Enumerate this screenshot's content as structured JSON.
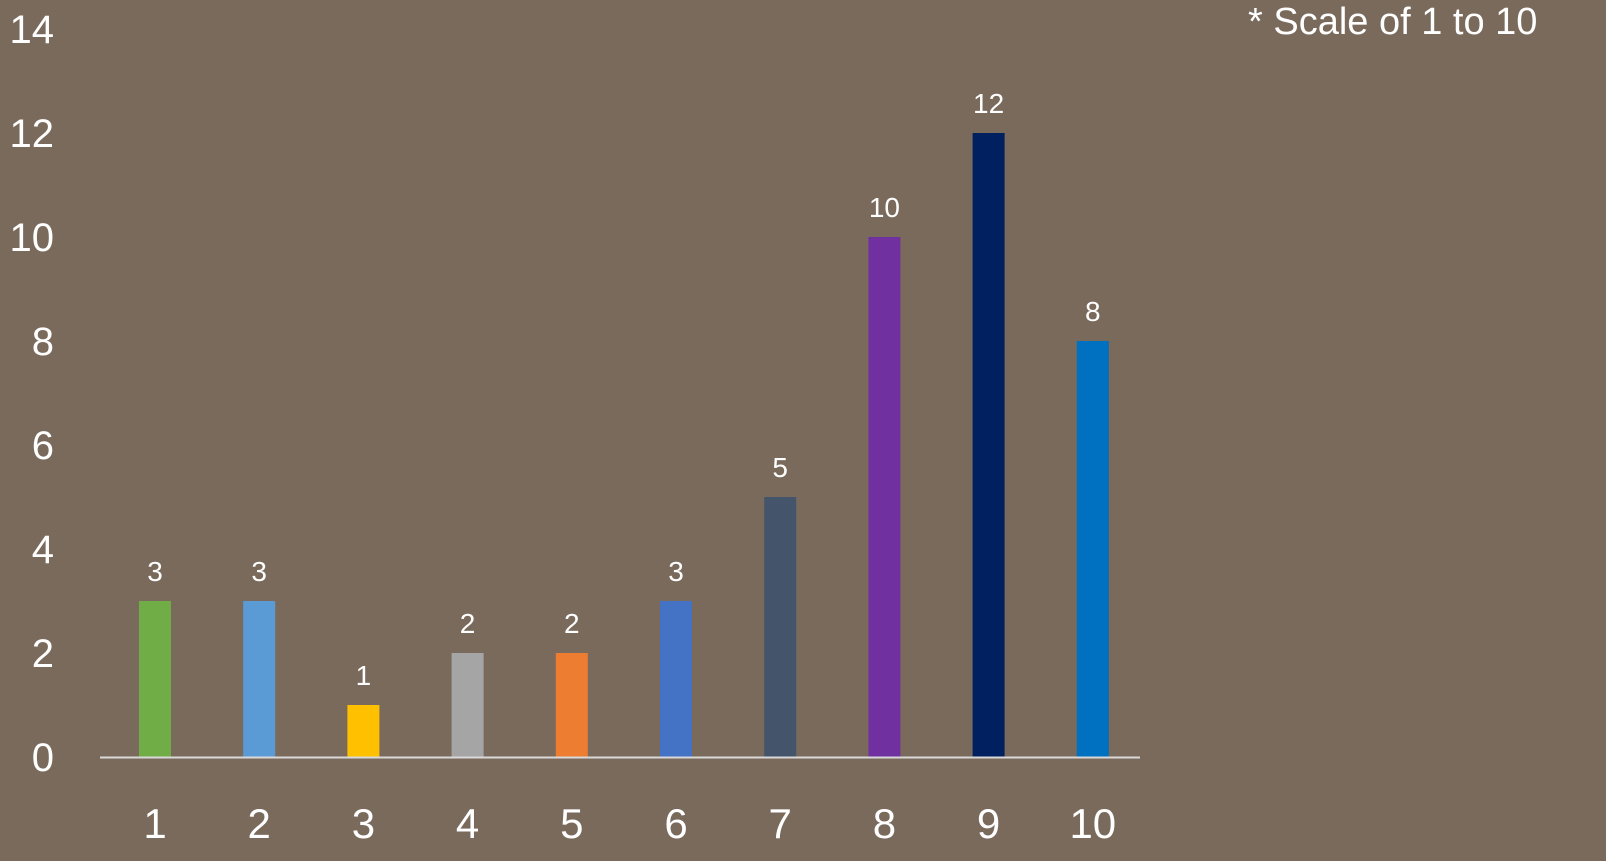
{
  "chart_data": {
    "type": "bar",
    "categories": [
      "1",
      "2",
      "3",
      "4",
      "5",
      "6",
      "7",
      "8",
      "9",
      "10"
    ],
    "values": [
      3,
      3,
      1,
      2,
      2,
      3,
      5,
      10,
      12,
      8
    ],
    "bar_colors": [
      "#70ad47",
      "#5b9bd5",
      "#ffc000",
      "#a5a5a5",
      "#ed7d31",
      "#4472c4",
      "#44546a",
      "#7030a0",
      "#002060",
      "#0070c0"
    ],
    "y_ticks": [
      "0",
      "2",
      "4",
      "6",
      "8",
      "10",
      "12",
      "14"
    ],
    "ylim": [
      0,
      14
    ],
    "grid": false,
    "legend": "none",
    "annotation": "* Scale of 1 to 10",
    "background_color": "#7a6a5c",
    "text_color": "#ffffff",
    "axis_color": "#d9d9d9"
  }
}
